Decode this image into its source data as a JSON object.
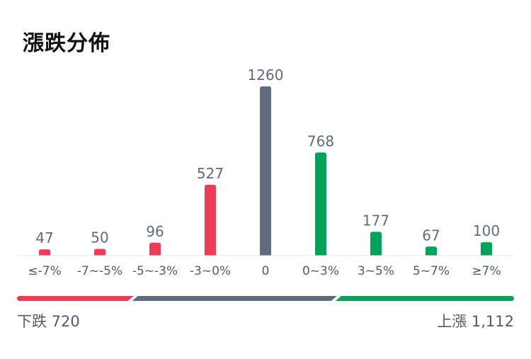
{
  "title": "漲跌分佈",
  "colors": {
    "down": "#f03b55",
    "flat": "#5f6b7e",
    "up": "#00a35a",
    "baseline": "#e5e5e5"
  },
  "chart_data": {
    "type": "bar",
    "categories": [
      "≤-7%",
      "-7~-5%",
      "-5~-3%",
      "-3~0%",
      "0",
      "0~3%",
      "3~5%",
      "5~7%",
      "≥7%"
    ],
    "values": [
      47,
      50,
      96,
      527,
      1260,
      768,
      177,
      67,
      100
    ],
    "value_labels": [
      "47",
      "50",
      "96",
      "527",
      "1260",
      "768",
      "177",
      "67",
      "100"
    ],
    "bar_colors": [
      "down",
      "down",
      "down",
      "down",
      "flat",
      "up",
      "up",
      "up",
      "up"
    ],
    "ylim": [
      0,
      1260
    ]
  },
  "summary": {
    "down_label": "下跌 720",
    "up_label": "上漲 1,112",
    "down_count": 720,
    "flat_count": 1260,
    "up_count": 1112
  }
}
